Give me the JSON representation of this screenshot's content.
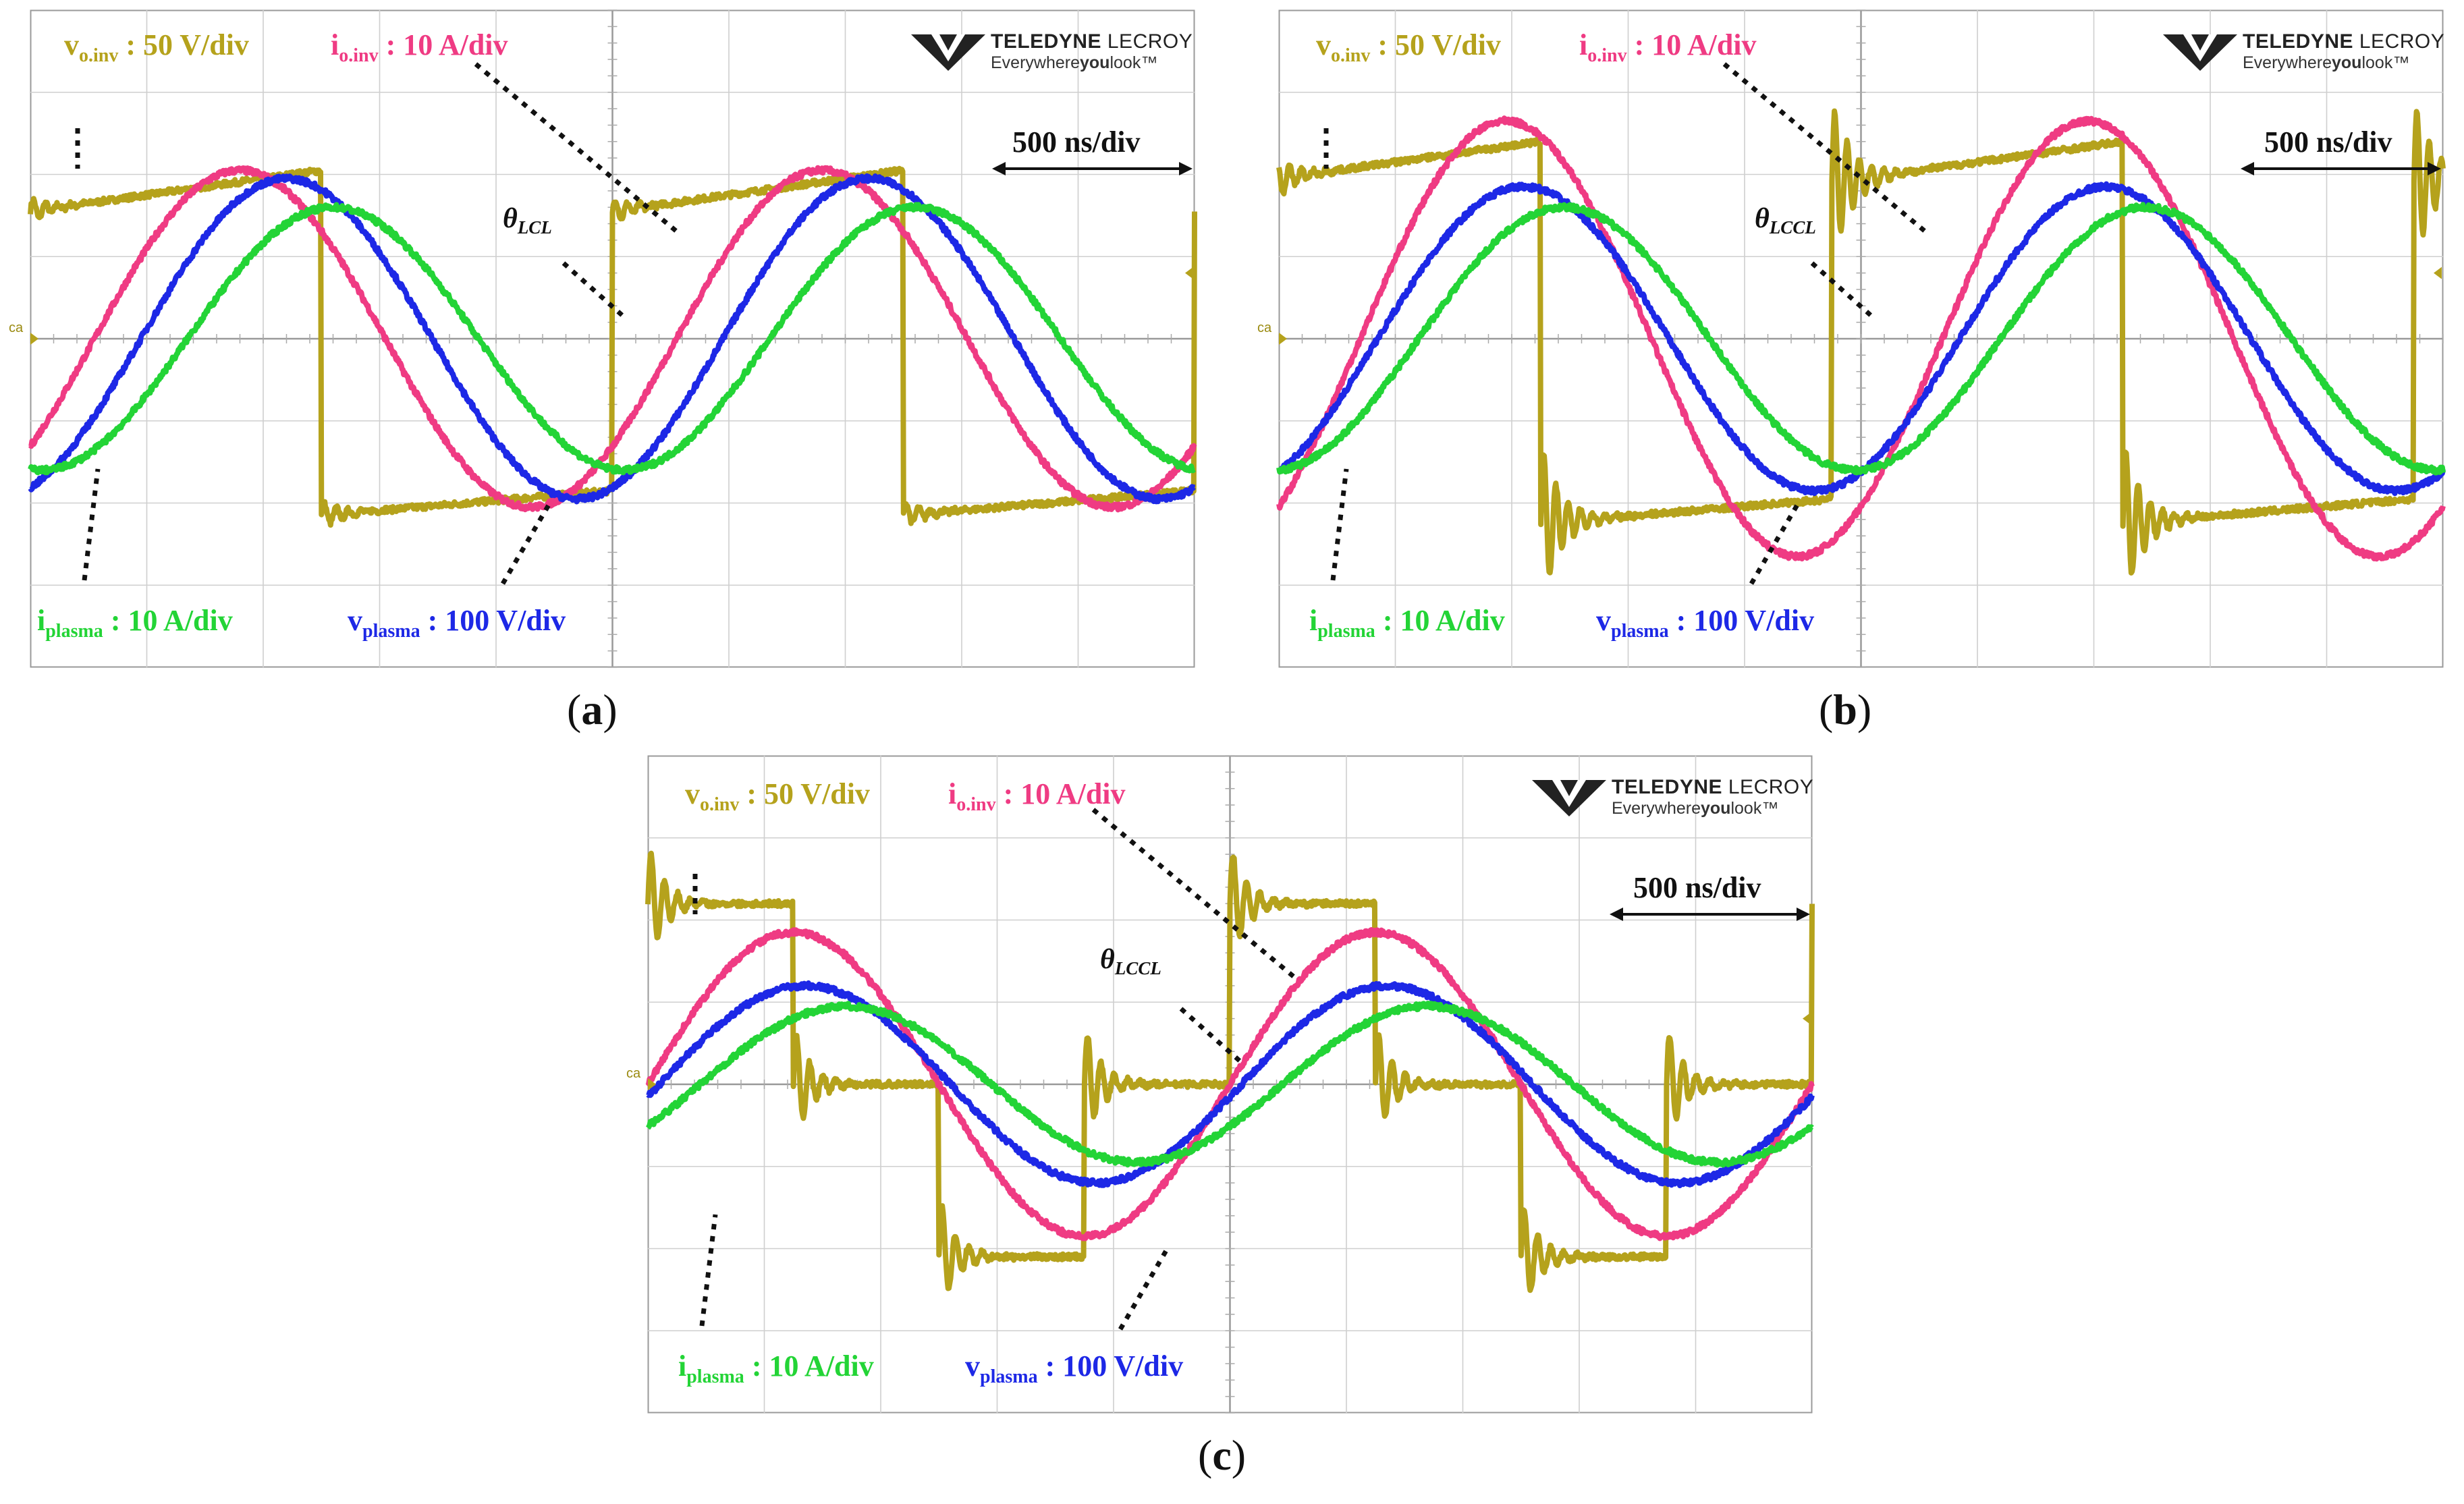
{
  "figure": {
    "panels": [
      {
        "caption_letter": "a",
        "theta_label": {
          "base": "θ",
          "sub": "LCL"
        },
        "time_div": "500 ns/div",
        "channels": {
          "v_inv": {
            "sym": "v",
            "sub": "o.inv",
            "scale": ": 50 V/div"
          },
          "i_inv": {
            "sym": "i",
            "sub": "o.inv",
            "scale": ": 10 A/div"
          },
          "i_plasma": {
            "sym": "i",
            "sub": "plasma",
            "scale": ": 10 A/div"
          },
          "v_plasma": {
            "sym": "v",
            "sub": "plasma",
            "scale": ": 100 V/div"
          }
        },
        "logo": {
          "brand": "TELEDYNE",
          "brand2": "LECROY",
          "tag_pre": "Everywhere",
          "tag_bold": "you",
          "tag_post": "look™"
        },
        "ground_marker": "ca"
      },
      {
        "caption_letter": "b",
        "theta_label": {
          "base": "θ",
          "sub": "LCCL"
        },
        "time_div": "500 ns/div",
        "channels": {
          "v_inv": {
            "sym": "v",
            "sub": "o.inv",
            "scale": ": 50 V/div"
          },
          "i_inv": {
            "sym": "i",
            "sub": "o.inv",
            "scale": ": 10 A/div"
          },
          "i_plasma": {
            "sym": "i",
            "sub": "plasma",
            "scale": ": 10 A/div"
          },
          "v_plasma": {
            "sym": "v",
            "sub": "plasma",
            "scale": ": 100 V/div"
          }
        },
        "logo": {
          "brand": "TELEDYNE",
          "brand2": "LECROY",
          "tag_pre": "Everywhere",
          "tag_bold": "you",
          "tag_post": "look™"
        },
        "ground_marker": "ca"
      },
      {
        "caption_letter": "c",
        "theta_label": {
          "base": "θ",
          "sub": "LCCL"
        },
        "time_div": "500 ns/div",
        "channels": {
          "v_inv": {
            "sym": "v",
            "sub": "o.inv",
            "scale": ": 50 V/div"
          },
          "i_inv": {
            "sym": "i",
            "sub": "o.inv",
            "scale": ": 10 A/div"
          },
          "i_plasma": {
            "sym": "i",
            "sub": "plasma",
            "scale": ": 10 A/div"
          },
          "v_plasma": {
            "sym": "v",
            "sub": "plasma",
            "scale": ": 100 V/div"
          }
        },
        "logo": {
          "brand": "TELEDYNE",
          "brand2": "LECROY",
          "tag_pre": "Everywhere",
          "tag_bold": "you",
          "tag_post": "look™"
        },
        "ground_marker": "ca"
      }
    ]
  },
  "colors": {
    "v_inv": "#b5a21c",
    "i_inv": "#ef3b83",
    "i_plasma": "#23d436",
    "v_plasma": "#1d28e6",
    "grid": "#cfcfcf",
    "frame": "#9a9a9a"
  },
  "chart_data": [
    {
      "type": "line",
      "title": "(a)",
      "x_unit": "div",
      "xlim": [
        0,
        10
      ],
      "ylim": [
        -4,
        4
      ],
      "time_per_div_ns": 500,
      "series": [
        {
          "name": "v_o.inv",
          "kind": "square",
          "period_div": 5,
          "phase_div": 0.0,
          "high": 1.8,
          "low": -2.0,
          "duty": 0.5,
          "tilt": 0.5,
          "ringing": 0.08
        },
        {
          "name": "i_o.inv",
          "kind": "sine",
          "period_div": 5,
          "phase_div": 0.55,
          "amp": 2.05,
          "offset": 0.0
        },
        {
          "name": "v_plasma",
          "kind": "sine",
          "period_div": 5,
          "phase_div": 0.95,
          "amp": 1.95,
          "offset": 0.0
        },
        {
          "name": "i_plasma",
          "kind": "sine",
          "period_div": 5,
          "phase_div": 1.35,
          "amp": 1.6,
          "offset": 0.0
        }
      ]
    },
    {
      "type": "line",
      "title": "(b)",
      "x_unit": "div",
      "xlim": [
        0,
        10
      ],
      "ylim": [
        -4,
        4
      ],
      "time_per_div_ns": 500,
      "series": [
        {
          "name": "v_o.inv",
          "kind": "square",
          "period_div": 5,
          "phase_div": -0.25,
          "high": 2.15,
          "low": -2.1,
          "duty": 0.5,
          "tilt": 0.5,
          "ringing": 0.5
        },
        {
          "name": "i_o.inv",
          "kind": "sine",
          "period_div": 5,
          "phase_div": 0.7,
          "amp": 2.65,
          "offset": 0.0
        },
        {
          "name": "v_plasma",
          "kind": "sine",
          "period_div": 5,
          "phase_div": 0.85,
          "amp": 1.85,
          "offset": 0.0
        },
        {
          "name": "i_plasma",
          "kind": "sine",
          "period_div": 5,
          "phase_div": 1.2,
          "amp": 1.6,
          "offset": 0.0
        }
      ]
    },
    {
      "type": "line",
      "title": "(c)",
      "x_unit": "div",
      "xlim": [
        0,
        10
      ],
      "ylim": [
        -4,
        4
      ],
      "time_per_div_ns": 500,
      "series": [
        {
          "name": "v_o.inv",
          "kind": "stepped",
          "period_div": 5,
          "phase_div": 0.0,
          "levels": [
            2.2,
            0.0,
            -2.1,
            0.0
          ],
          "ringing": 0.45
        },
        {
          "name": "i_o.inv",
          "kind": "sine",
          "period_div": 5,
          "phase_div": 0.0,
          "amp": 1.85,
          "offset": 0.0
        },
        {
          "name": "v_plasma",
          "kind": "sine",
          "period_div": 5,
          "phase_div": 0.1,
          "amp": 1.2,
          "offset": 0.0
        },
        {
          "name": "i_plasma",
          "kind": "sine",
          "period_div": 5,
          "phase_div": 0.45,
          "amp": 0.95,
          "offset": 0.0
        }
      ]
    }
  ]
}
